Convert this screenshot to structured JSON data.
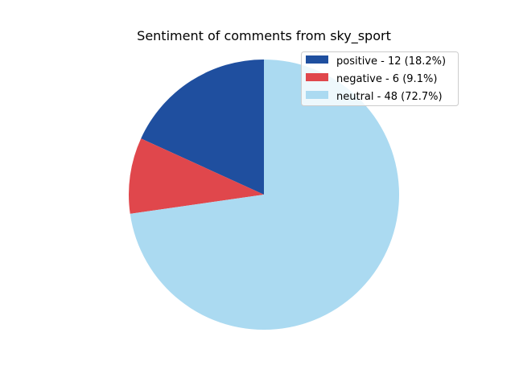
{
  "chart_data": {
    "type": "pie",
    "title": "Sentiment of comments from sky_sport",
    "start_angle_deg": 90,
    "direction": "counterclockwise",
    "legend_position": "top-right",
    "slices": [
      {
        "label": "positive",
        "value": 12,
        "percent": 18.2,
        "legend_text": "positive - 12 (18.2%)",
        "color": "#1f4f9f"
      },
      {
        "label": "negative",
        "value": 6,
        "percent": 9.1,
        "legend_text": "negative - 6 (9.1%)",
        "color": "#e0474c"
      },
      {
        "label": "neutral",
        "value": 48,
        "percent": 72.7,
        "legend_text": "neutral - 48 (72.7%)",
        "color": "#abdaf1"
      }
    ]
  }
}
